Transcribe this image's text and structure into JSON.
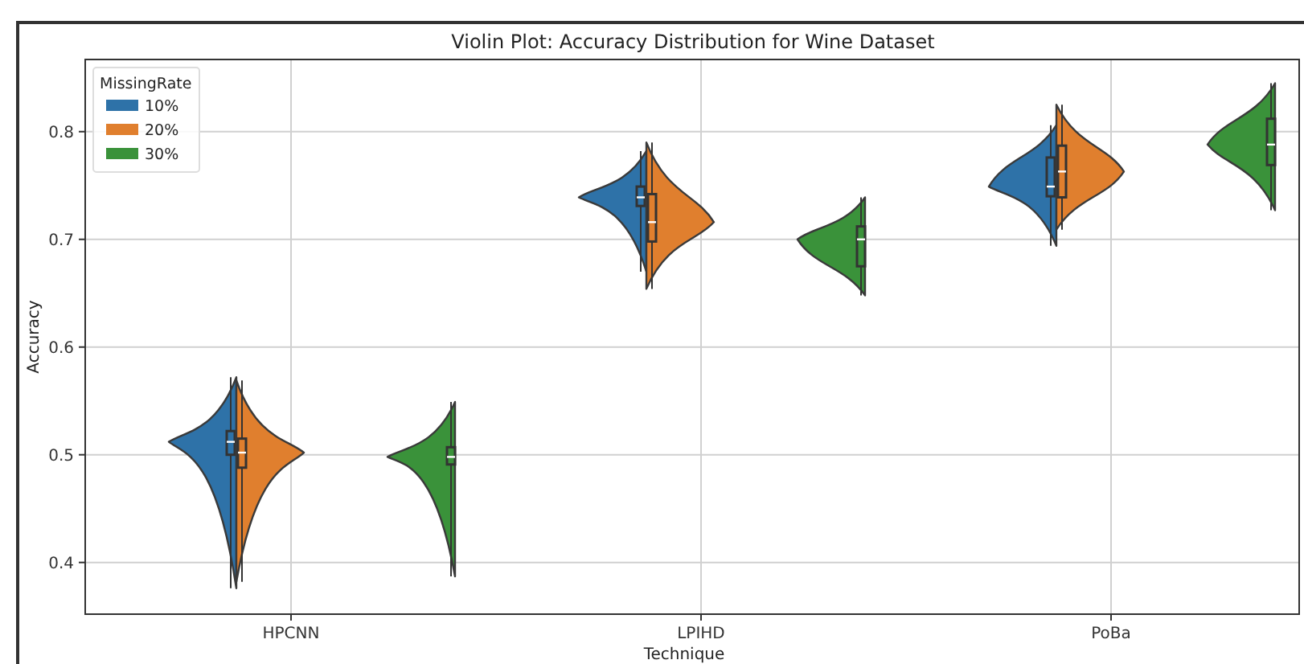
{
  "chart_data": {
    "type": "box",
    "title": "Violin Plot: Accuracy Distribution for Wine Dataset",
    "xlabel": "Technique",
    "ylabel": "Accuracy",
    "legend_title": "MissingRate",
    "legend": "top left",
    "grid": true,
    "categories": [
      "HPCNN",
      "LPIHD",
      "PoBa"
    ],
    "ylim": [
      0.352,
      0.867
    ],
    "yticks": [
      0.4,
      0.5,
      0.6,
      0.7,
      0.8
    ],
    "series": [
      {
        "name": "10%",
        "color": "#2e72a8",
        "boxes": [
          {
            "low": 0.376,
            "q1": 0.5,
            "median": 0.512,
            "q3": 0.522,
            "high": 0.572
          },
          {
            "low": 0.67,
            "q1": 0.731,
            "median": 0.739,
            "q3": 0.749,
            "high": 0.782
          },
          {
            "low": 0.694,
            "q1": 0.74,
            "median": 0.749,
            "q3": 0.776,
            "high": 0.806
          }
        ]
      },
      {
        "name": "20%",
        "color": "#e07f2e",
        "boxes": [
          {
            "low": 0.382,
            "q1": 0.488,
            "median": 0.502,
            "q3": 0.515,
            "high": 0.569
          },
          {
            "low": 0.654,
            "q1": 0.698,
            "median": 0.716,
            "q3": 0.742,
            "high": 0.79
          },
          {
            "low": 0.709,
            "q1": 0.739,
            "median": 0.763,
            "q3": 0.787,
            "high": 0.825
          }
        ]
      },
      {
        "name": "30%",
        "color": "#3a923a",
        "boxes": [
          {
            "low": 0.387,
            "q1": 0.491,
            "median": 0.498,
            "q3": 0.507,
            "high": 0.549
          },
          {
            "low": 0.648,
            "q1": 0.675,
            "median": 0.7,
            "q3": 0.712,
            "high": 0.739
          },
          {
            "low": 0.727,
            "q1": 0.769,
            "median": 0.788,
            "q3": 0.812,
            "high": 0.845
          }
        ]
      }
    ]
  }
}
